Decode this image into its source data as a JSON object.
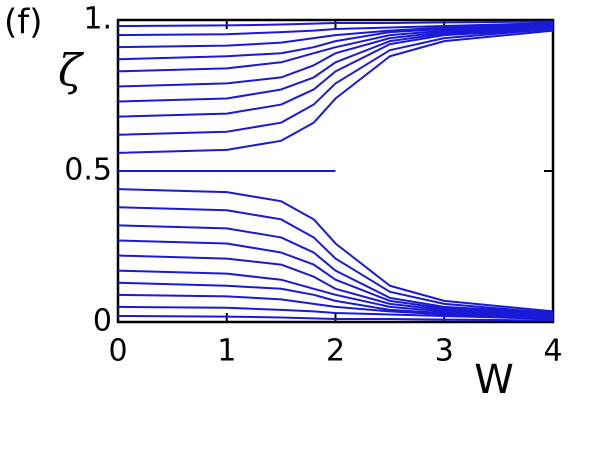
{
  "chart_data": {
    "type": "line",
    "annotation": "(f)",
    "y_label": "ζ",
    "x_label": "W",
    "color": "#1a1ad6",
    "x": [
      0,
      1,
      1.5,
      1.8,
      2,
      2.5,
      3,
      4
    ],
    "xlim": [
      0,
      4
    ],
    "ylim": [
      0,
      1
    ],
    "xticks": [
      0,
      1,
      2,
      3,
      4
    ],
    "yticks": [
      0,
      0.5,
      {
        "value": 1,
        "label": "1."
      }
    ],
    "series": [
      {
        "values": [
          0.56,
          0.57,
          0.6,
          0.66,
          0.74,
          0.88,
          0.93,
          0.965
        ]
      },
      {
        "values": [
          0.62,
          0.63,
          0.66,
          0.72,
          0.79,
          0.9,
          0.94,
          0.97
        ]
      },
      {
        "values": [
          0.68,
          0.69,
          0.72,
          0.77,
          0.83,
          0.92,
          0.95,
          0.97
        ]
      },
      {
        "values": [
          0.73,
          0.74,
          0.77,
          0.81,
          0.86,
          0.93,
          0.955,
          0.975
        ]
      },
      {
        "values": [
          0.78,
          0.79,
          0.81,
          0.85,
          0.89,
          0.94,
          0.96,
          0.975
        ]
      },
      {
        "values": [
          0.83,
          0.84,
          0.86,
          0.89,
          0.91,
          0.95,
          0.965,
          0.98
        ]
      },
      {
        "values": [
          0.87,
          0.88,
          0.89,
          0.91,
          0.93,
          0.96,
          0.97,
          0.98
        ]
      },
      {
        "values": [
          0.91,
          0.915,
          0.925,
          0.94,
          0.95,
          0.965,
          0.975,
          0.985
        ]
      },
      {
        "values": [
          0.95,
          0.953,
          0.96,
          0.965,
          0.97,
          0.975,
          0.98,
          0.99
        ]
      },
      {
        "values": [
          0.98,
          0.982,
          0.985,
          0.988,
          0.99,
          0.99,
          0.992,
          0.995
        ]
      },
      {
        "values": [
          0.5,
          0.5,
          0.5,
          0.5,
          0.5,
          null,
          null,
          null
        ]
      },
      {
        "values": [
          0.44,
          0.43,
          0.4,
          0.34,
          0.26,
          0.12,
          0.07,
          0.035
        ]
      },
      {
        "values": [
          0.38,
          0.37,
          0.34,
          0.28,
          0.21,
          0.1,
          0.06,
          0.03
        ]
      },
      {
        "values": [
          0.32,
          0.31,
          0.28,
          0.23,
          0.17,
          0.08,
          0.05,
          0.03
        ]
      },
      {
        "values": [
          0.27,
          0.26,
          0.23,
          0.19,
          0.14,
          0.07,
          0.045,
          0.025
        ]
      },
      {
        "values": [
          0.22,
          0.21,
          0.19,
          0.15,
          0.11,
          0.06,
          0.04,
          0.025
        ]
      },
      {
        "values": [
          0.17,
          0.16,
          0.14,
          0.11,
          0.09,
          0.05,
          0.035,
          0.02
        ]
      },
      {
        "values": [
          0.13,
          0.12,
          0.11,
          0.09,
          0.07,
          0.04,
          0.03,
          0.02
        ]
      },
      {
        "values": [
          0.09,
          0.085,
          0.075,
          0.06,
          0.05,
          0.035,
          0.025,
          0.015
        ]
      },
      {
        "values": [
          0.05,
          0.047,
          0.04,
          0.035,
          0.03,
          0.025,
          0.02,
          0.01
        ]
      },
      {
        "values": [
          0.02,
          0.018,
          0.015,
          0.012,
          0.01,
          0.01,
          0.008,
          0.005
        ]
      }
    ]
  }
}
